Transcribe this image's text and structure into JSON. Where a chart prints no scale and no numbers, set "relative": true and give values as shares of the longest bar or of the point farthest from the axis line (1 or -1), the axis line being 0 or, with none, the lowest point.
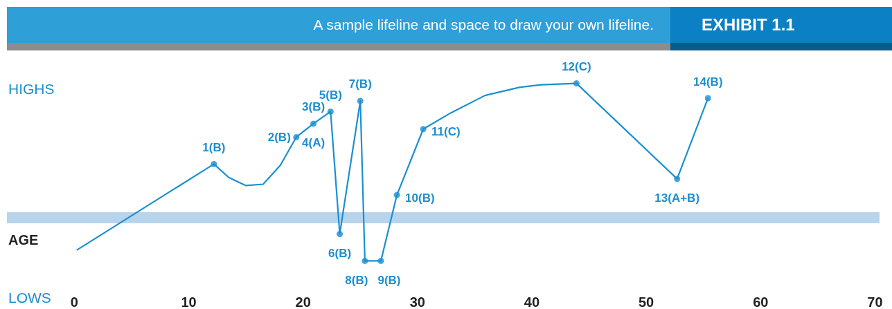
{
  "chart_data": {
    "type": "line",
    "title": "A sample lifeline and space to draw your own lifeline.",
    "subtitle": "EXHIBIT 1.1",
    "xlabel": "AGE",
    "relative": true,
    "grid": false,
    "ref_lines": [
      {
        "axis": "y",
        "value": 0,
        "color": "#b7d4ec"
      }
    ],
    "xlim": [
      -5.9,
      70.4
    ],
    "xticks": [
      0,
      10,
      20,
      30,
      40,
      50,
      60,
      70
    ],
    "series": [
      {
        "color": "#1a8fd0",
        "marker": "none",
        "x": [
          0.2,
          12.2,
          13.5,
          15.0,
          16.5,
          18.0,
          19.4,
          20.9,
          22.4,
          23.2,
          25.0,
          25.4,
          26.8,
          28.2,
          30.5,
          32.9,
          35.9,
          38.9,
          40.8,
          43.9,
          52.7,
          55.4
        ],
        "values": [
          -0.24,
          0.4,
          0.3,
          0.24,
          0.25,
          0.39,
          0.6,
          0.7,
          0.79,
          -0.12,
          0.87,
          -0.32,
          -0.32,
          0.17,
          0.66,
          0.78,
          0.91,
          0.97,
          0.99,
          1.0,
          0.29,
          0.89
        ]
      },
      {
        "type": "scatter",
        "color": "#1a8fd0",
        "marker": "circle",
        "x": [
          12.2,
          19.4,
          20.9,
          22.4,
          23.2,
          25.0,
          25.4,
          26.8,
          28.2,
          30.5,
          43.9,
          52.7,
          55.4
        ],
        "values": [
          0.4,
          0.6,
          0.7,
          0.79,
          -0.12,
          0.87,
          -0.32,
          -0.32,
          0.17,
          0.66,
          1.0,
          0.29,
          0.89
        ]
      }
    ],
    "annotations": [
      "HIGHS",
      "LOWS",
      {
        "text": "1(B)",
        "x": 12.2,
        "y": 0.4
      },
      {
        "text": "2(B)",
        "x": 19.4,
        "y": 0.6
      },
      {
        "text": "3(B)",
        "x": 20.9,
        "y": 0.7
      },
      {
        "text": "4(A)",
        "x": 20.9,
        "y": 0.7
      },
      {
        "text": "5(B)",
        "x": 22.4,
        "y": 0.79
      },
      {
        "text": "6(B)",
        "x": 23.2,
        "y": -0.12
      },
      {
        "text": "7(B)",
        "x": 25.0,
        "y": 0.87
      },
      {
        "text": "8(B)",
        "x": 25.4,
        "y": -0.32
      },
      {
        "text": "9(B)",
        "x": 26.8,
        "y": -0.32
      },
      {
        "text": "10(B)",
        "x": 28.2,
        "y": 0.17
      },
      {
        "text": "11(C)",
        "x": 30.5,
        "y": 0.66
      },
      {
        "text": "12(C)",
        "x": 43.9,
        "y": 1.0
      },
      {
        "text": "13(A+B)",
        "x": 52.7,
        "y": 0.29
      },
      {
        "text": "14(B)",
        "x": 55.4,
        "y": 0.89
      }
    ]
  }
}
